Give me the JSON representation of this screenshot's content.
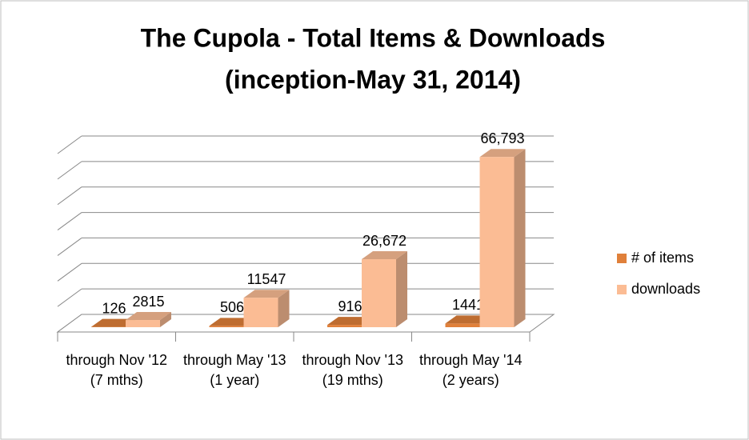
{
  "chart_data": {
    "type": "bar3d",
    "title": [
      "The Cupola - Total Items & Downloads",
      "(inception-May 31, 2014)"
    ],
    "categories": [
      "through Nov '12 (7 mths)",
      "through May '13 (1 year)",
      "through Nov '13 (19 mths)",
      "through May '14 (2 years)"
    ],
    "series": [
      {
        "name": "# of items",
        "color": "#e0803a",
        "values": [
          126,
          506,
          916,
          1441
        ],
        "value_labels": [
          "126",
          "506",
          "916",
          "1441"
        ]
      },
      {
        "name": "downloads",
        "color": "#fbbc94",
        "values": [
          2815,
          11547,
          26672,
          66793
        ],
        "value_labels": [
          "2815",
          "11547",
          "26,672",
          "66,793"
        ]
      }
    ],
    "ylim": [
      0,
      70000
    ],
    "yticks": [
      0,
      10000,
      20000,
      30000,
      40000,
      50000,
      60000,
      70000
    ],
    "grid": true,
    "legend": "right"
  }
}
